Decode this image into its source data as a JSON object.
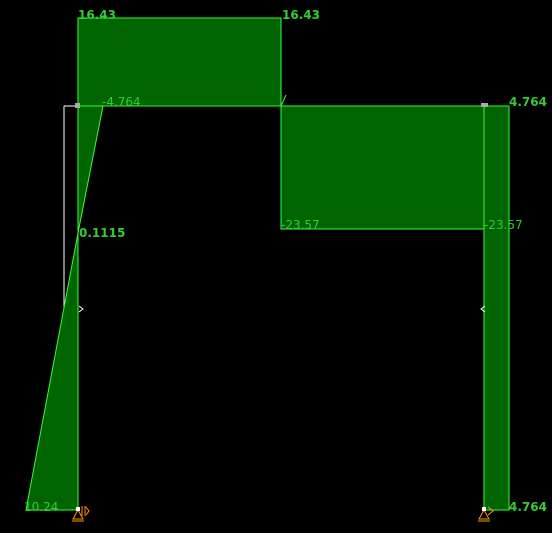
{
  "diagram": {
    "colors": {
      "background": "#000000",
      "fill": "#006400",
      "outline": "#33ff33",
      "label": "#33cc33",
      "frame": "#ffffff",
      "support": "#ff9900",
      "node": "#aaaaaa"
    },
    "labels": {
      "top_left": "16.43",
      "top_right": "16.43",
      "beam_left_small": "-4.764",
      "right_top": "4.764",
      "mid_left": "0.1115",
      "beam_neg_left": "-23.57",
      "beam_neg_right": "-23.57",
      "bottom_left": "10.24",
      "bottom_right": "4.764"
    }
  }
}
